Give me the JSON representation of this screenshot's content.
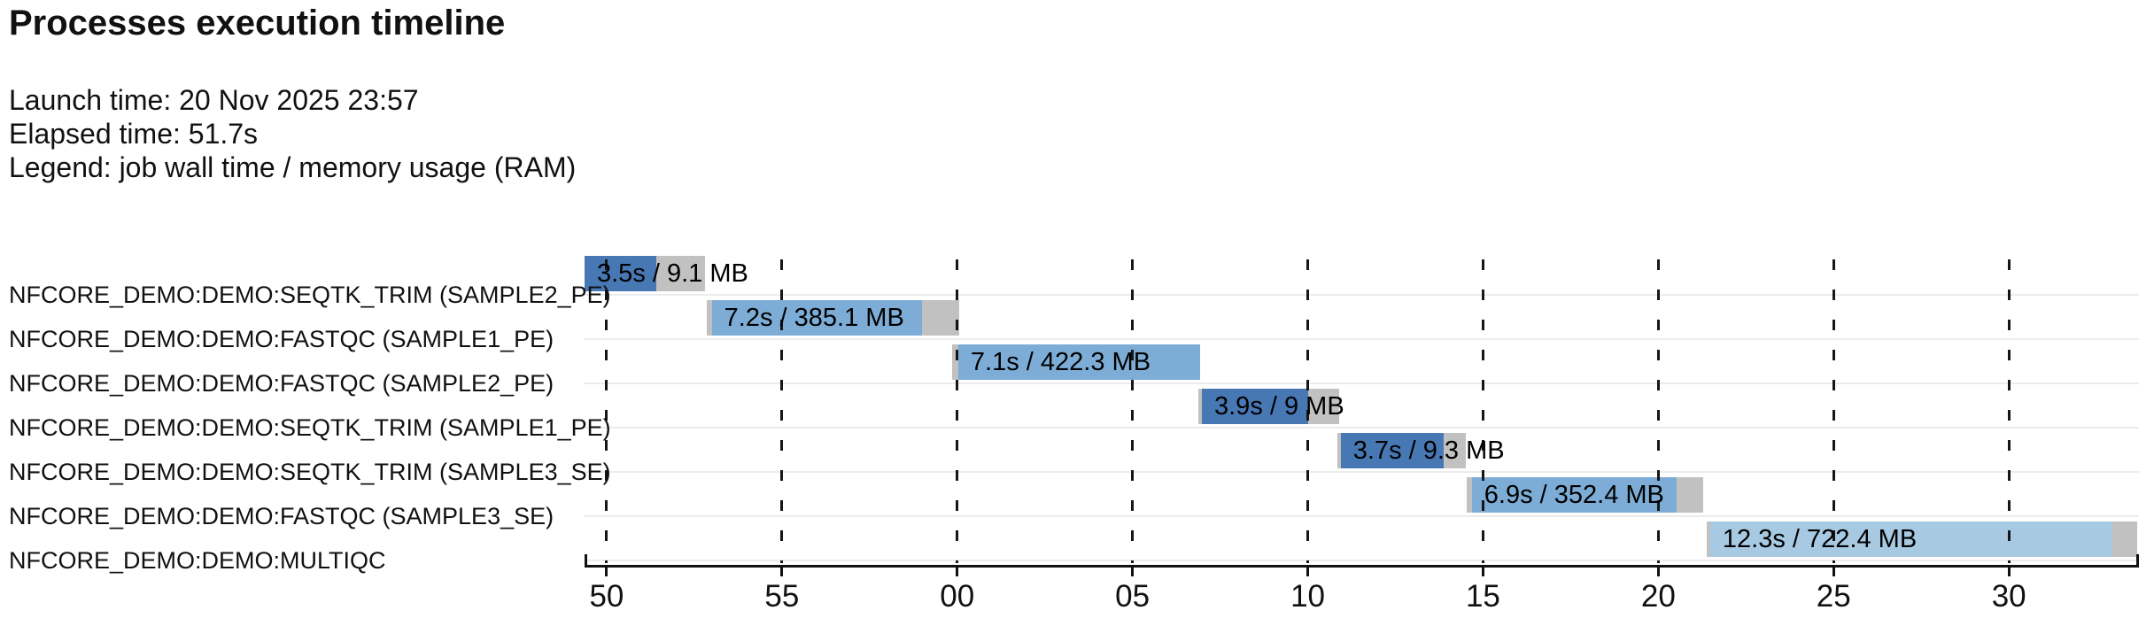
{
  "header": {
    "title": "Processes execution timeline",
    "launch_time": "Launch time: 20 Nov 2025 23:57",
    "elapsed_time": "Elapsed time: 51.7s",
    "legend": "Legend: job wall time / memory usage (RAM)"
  },
  "chart_data": {
    "type": "gantt-timeline",
    "title": "Processes execution timeline",
    "launch_time": "20 Nov 2025 23:57",
    "elapsed_time": "51.7s",
    "legend": "job wall time / memory usage (RAM)",
    "axis": {
      "tick_labels": [
        "50",
        "55",
        "00",
        "05",
        "10",
        "15",
        "20",
        "25",
        "30"
      ],
      "tick_times_s": [
        50,
        55,
        60,
        65,
        70,
        75,
        80,
        85,
        90
      ],
      "domain_s": [
        49.37,
        93.71
      ],
      "grid": "dashed-vertical"
    },
    "palette": {
      "seqtk_trim": "#4878b4",
      "fastqc": "#7dadd6",
      "multiqc": "#a7c9e2",
      "memory_gray": "#c1c1c1"
    },
    "processes": [
      {
        "label": "NFCORE_DEMO:DEMO:SEQTK_TRIM (SAMPLE2_PE)",
        "value_label": "3.5s / 9.1 MB",
        "wall_time": "3.5s",
        "memory": "9.1 MB",
        "color_key": "seqtk_trim",
        "segments": [
          {
            "kind": "run",
            "t0": 49.37,
            "t1": 51.42
          },
          {
            "kind": "mem",
            "t0": 51.42,
            "t1": 52.8
          }
        ]
      },
      {
        "label": "NFCORE_DEMO:DEMO:FASTQC (SAMPLE1_PE)",
        "value_label": "7.2s / 385.1 MB",
        "wall_time": "7.2s",
        "memory": "385.1 MB",
        "color_key": "fastqc",
        "segments": [
          {
            "kind": "pend",
            "t0": 52.85,
            "t1": 53.0
          },
          {
            "kind": "run",
            "t0": 53.0,
            "t1": 59.0
          },
          {
            "kind": "mem",
            "t0": 59.0,
            "t1": 60.05
          }
        ]
      },
      {
        "label": "NFCORE_DEMO:DEMO:FASTQC (SAMPLE2_PE)",
        "value_label": "7.1s / 422.3 MB",
        "wall_time": "7.1s",
        "memory": "422.3 MB",
        "color_key": "fastqc",
        "segments": [
          {
            "kind": "pend",
            "t0": 59.85,
            "t1": 60.03
          },
          {
            "kind": "run",
            "t0": 60.03,
            "t1": 66.93
          }
        ]
      },
      {
        "label": "NFCORE_DEMO:DEMO:SEQTK_TRIM (SAMPLE1_PE)",
        "value_label": "3.9s / 9 MB",
        "wall_time": "3.9s",
        "memory": "9 MB",
        "color_key": "seqtk_trim",
        "segments": [
          {
            "kind": "pend",
            "t0": 66.88,
            "t1": 66.98
          },
          {
            "kind": "run",
            "t0": 66.98,
            "t1": 70.0
          },
          {
            "kind": "mem",
            "t0": 70.0,
            "t1": 70.89
          }
        ]
      },
      {
        "label": "NFCORE_DEMO:DEMO:SEQTK_TRIM (SAMPLE3_SE)",
        "value_label": "3.7s / 9.3 MB",
        "wall_time": "3.7s",
        "memory": "9.3 MB",
        "color_key": "seqtk_trim",
        "segments": [
          {
            "kind": "pend",
            "t0": 70.84,
            "t1": 70.94
          },
          {
            "kind": "run",
            "t0": 70.94,
            "t1": 73.87
          },
          {
            "kind": "mem",
            "t0": 73.87,
            "t1": 74.5
          }
        ]
      },
      {
        "label": "NFCORE_DEMO:DEMO:FASTQC (SAMPLE3_SE)",
        "value_label": "6.9s / 352.4 MB",
        "wall_time": "6.9s",
        "memory": "352.4 MB",
        "color_key": "fastqc",
        "segments": [
          {
            "kind": "pend",
            "t0": 74.53,
            "t1": 74.68
          },
          {
            "kind": "run",
            "t0": 74.68,
            "t1": 80.52
          },
          {
            "kind": "mem",
            "t0": 80.52,
            "t1": 81.28
          }
        ]
      },
      {
        "label": "NFCORE_DEMO:DEMO:MULTIQC",
        "value_label": "12.3s / 722.4 MB",
        "wall_time": "12.3s",
        "memory": "722.4 MB",
        "color_key": "multiqc",
        "segments": [
          {
            "kind": "pend",
            "t0": 81.38,
            "t1": 81.48
          },
          {
            "kind": "run",
            "t0": 81.48,
            "t1": 92.94
          },
          {
            "kind": "mem",
            "t0": 92.94,
            "t1": 93.67
          }
        ]
      }
    ]
  }
}
